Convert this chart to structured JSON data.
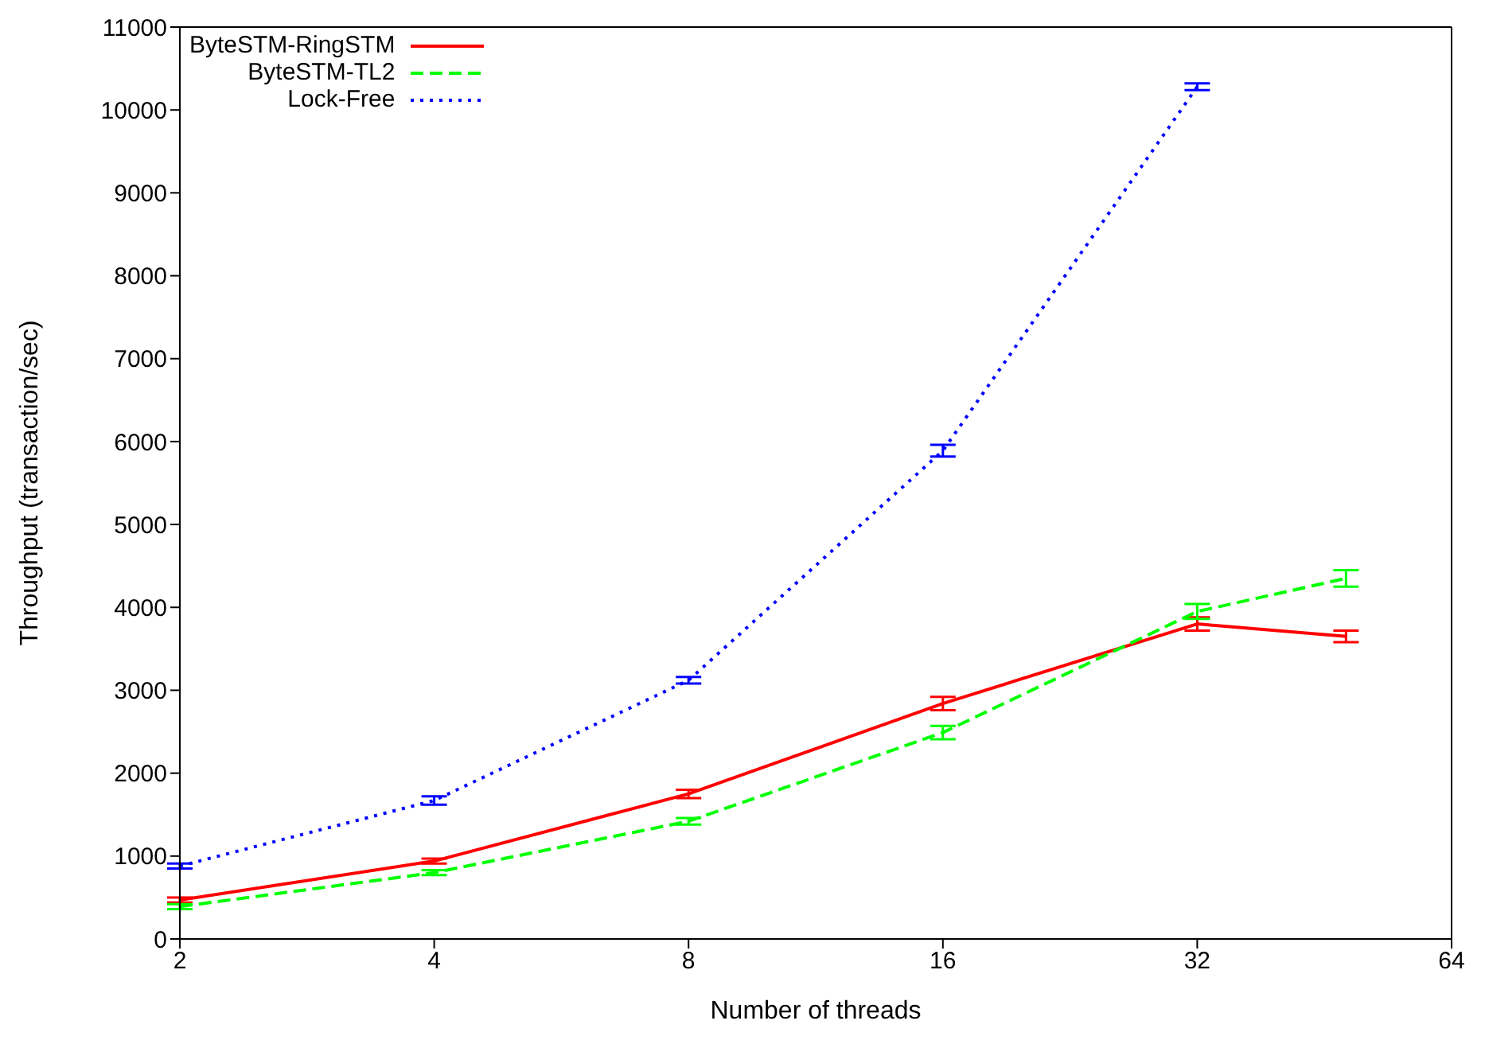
{
  "chart_data": {
    "type": "line",
    "xlabel": "Number of threads",
    "ylabel": "Throughput (transaction/sec)",
    "xlim": [
      2,
      64
    ],
    "xticks": [
      2,
      4,
      8,
      16,
      32,
      64
    ],
    "log": "x",
    "ylim": [
      0,
      11000
    ],
    "yticks": [
      0,
      1000,
      2000,
      3000,
      4000,
      5000,
      6000,
      7000,
      8000,
      9000,
      10000,
      11000
    ],
    "grid": false,
    "legend": "top left",
    "marker": "none",
    "series": [
      {
        "name": "ByteSTM-RingSTM",
        "color": "#ff0000",
        "line_style": "solid",
        "x": [
          2,
          4,
          8,
          16,
          32,
          48
        ],
        "values": [
          470,
          940,
          1750,
          2840,
          3800,
          3650
        ],
        "errors": [
          30,
          30,
          50,
          80,
          80,
          70
        ]
      },
      {
        "name": "ByteSTM-TL2",
        "color": "#00ff00",
        "line_style": "dashed",
        "x": [
          2,
          4,
          8,
          16,
          32,
          48
        ],
        "values": [
          390,
          800,
          1420,
          2490,
          3950,
          4350
        ],
        "errors": [
          30,
          30,
          40,
          80,
          90,
          100
        ]
      },
      {
        "name": "Lock-Free",
        "color": "#0000ff",
        "line_style": "dotted",
        "x": [
          2,
          4,
          8,
          16,
          32
        ],
        "values": [
          880,
          1670,
          3120,
          5890,
          10280
        ],
        "errors": [
          30,
          50,
          40,
          70,
          40
        ]
      }
    ]
  }
}
